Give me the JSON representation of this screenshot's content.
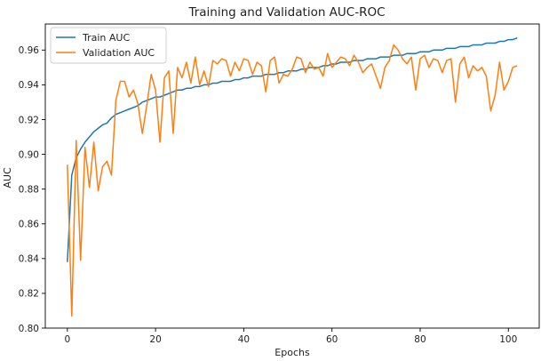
{
  "chart_data": {
    "type": "line",
    "title": "Training and Validation AUC-ROC",
    "xlabel": "Epochs",
    "ylabel": "AUC",
    "xlim": [
      -5,
      107
    ],
    "ylim": [
      0.8,
      0.975
    ],
    "xticks": [
      0,
      20,
      40,
      60,
      80,
      100
    ],
    "yticks": [
      0.8,
      0.82,
      0.84,
      0.86,
      0.88,
      0.9,
      0.92,
      0.94,
      0.96
    ],
    "grid": false,
    "legend": "top-left",
    "series": [
      {
        "name": "Train AUC",
        "color": "#1f77b4",
        "values": [
          0.838,
          0.888,
          0.898,
          0.903,
          0.907,
          0.91,
          0.913,
          0.915,
          0.917,
          0.918,
          0.921,
          0.923,
          0.924,
          0.925,
          0.926,
          0.927,
          0.928,
          0.93,
          0.931,
          0.932,
          0.933,
          0.933,
          0.934,
          0.935,
          0.936,
          0.937,
          0.937,
          0.938,
          0.938,
          0.939,
          0.939,
          0.94,
          0.94,
          0.941,
          0.941,
          0.942,
          0.942,
          0.942,
          0.943,
          0.943,
          0.944,
          0.944,
          0.945,
          0.945,
          0.945,
          0.946,
          0.946,
          0.946,
          0.947,
          0.947,
          0.948,
          0.948,
          0.948,
          0.949,
          0.949,
          0.95,
          0.95,
          0.95,
          0.951,
          0.951,
          0.952,
          0.952,
          0.953,
          0.953,
          0.953,
          0.954,
          0.954,
          0.954,
          0.955,
          0.955,
          0.955,
          0.956,
          0.956,
          0.956,
          0.957,
          0.957,
          0.957,
          0.958,
          0.958,
          0.958,
          0.959,
          0.959,
          0.959,
          0.96,
          0.96,
          0.96,
          0.961,
          0.961,
          0.961,
          0.962,
          0.962,
          0.962,
          0.963,
          0.963,
          0.963,
          0.964,
          0.964,
          0.964,
          0.965,
          0.965,
          0.966,
          0.966,
          0.967
        ]
      },
      {
        "name": "Validation AUC",
        "color": "#ff7f0e",
        "values": [
          0.894,
          0.807,
          0.908,
          0.839,
          0.904,
          0.881,
          0.907,
          0.879,
          0.893,
          0.896,
          0.888,
          0.931,
          0.942,
          0.942,
          0.933,
          0.937,
          0.929,
          0.912,
          0.928,
          0.946,
          0.937,
          0.907,
          0.944,
          0.948,
          0.912,
          0.95,
          0.944,
          0.953,
          0.941,
          0.956,
          0.94,
          0.948,
          0.939,
          0.954,
          0.952,
          0.955,
          0.954,
          0.945,
          0.953,
          0.948,
          0.955,
          0.954,
          0.946,
          0.953,
          0.951,
          0.936,
          0.954,
          0.956,
          0.941,
          0.946,
          0.945,
          0.949,
          0.956,
          0.955,
          0.947,
          0.953,
          0.949,
          0.95,
          0.945,
          0.958,
          0.95,
          0.953,
          0.956,
          0.955,
          0.951,
          0.957,
          0.953,
          0.947,
          0.95,
          0.952,
          0.945,
          0.938,
          0.95,
          0.954,
          0.963,
          0.96,
          0.955,
          0.952,
          0.956,
          0.937,
          0.955,
          0.957,
          0.95,
          0.955,
          0.954,
          0.947,
          0.954,
          0.955,
          0.93,
          0.952,
          0.956,
          0.944,
          0.951,
          0.948,
          0.95,
          0.945,
          0.925,
          0.934,
          0.953,
          0.937,
          0.942,
          0.95,
          0.951
        ]
      }
    ]
  }
}
